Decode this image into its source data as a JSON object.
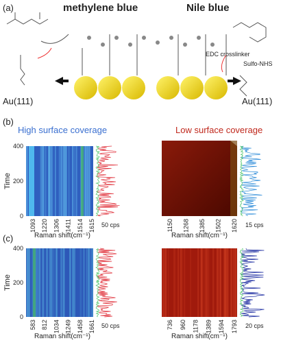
{
  "panel_a": {
    "label": "(a)",
    "left_title": "methylene blue",
    "right_title": "Nile blue",
    "left_substrate": "Au(111)",
    "right_substrate": "Au(111)",
    "reagent_1": "EDC crosslinker",
    "reagent_2": "Sulfo-NHS"
  },
  "panel_b": {
    "label": "(b)",
    "left_title": "High surface coverage",
    "right_title": "Low surface coverage",
    "y_label": "Time",
    "y_ticks": [
      0,
      200,
      400
    ],
    "left_x_ticks": [
      1093,
      1220,
      1306,
      1411,
      1514,
      1615
    ],
    "left_x_label": "Raman shift(cm⁻¹)",
    "left_scale": "50 cps",
    "right_x_ticks": [
      1150,
      1268,
      1385,
      1502,
      1620
    ],
    "right_x_label": "Raman shift(cm⁻¹)",
    "right_scale": "15 cps"
  },
  "panel_c": {
    "label": "(c)",
    "y_label": "Time",
    "y_ticks": [
      0,
      200,
      400
    ],
    "left_x_ticks": [
      583,
      812,
      1034,
      1249,
      1458,
      1661
    ],
    "left_x_label": "Raman shift(cm⁻¹)",
    "left_scale": "50 cps",
    "right_x_ticks": [
      736,
      960,
      1178,
      1389,
      1594,
      1793
    ],
    "right_x_label": "Raman shift(cm⁻¹)",
    "right_scale": "20 cps"
  }
}
